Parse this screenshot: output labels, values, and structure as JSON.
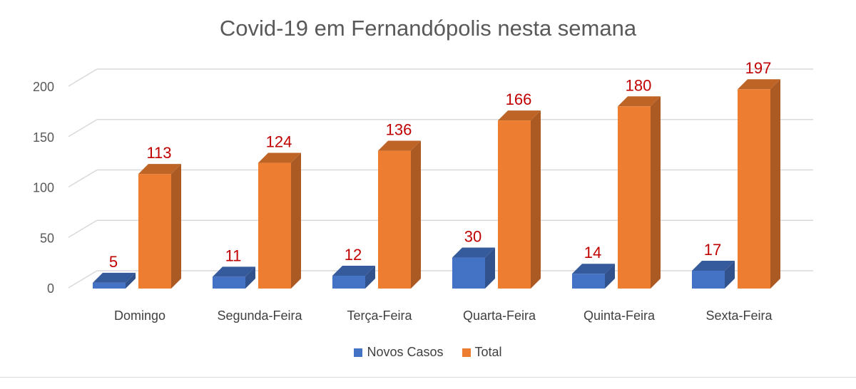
{
  "chart_data": {
    "type": "bar",
    "title": "Covid-19 em Fernandópolis nesta semana",
    "categories": [
      "Domingo",
      "Segunda-Feira",
      "Terça-Feira",
      "Quarta-Feira",
      "Quinta-Feira",
      "Sexta-Feira"
    ],
    "series": [
      {
        "name": "Novos Casos",
        "values": [
          5,
          11,
          12,
          30,
          14,
          17
        ],
        "color": "#4472c4"
      },
      {
        "name": "Total",
        "values": [
          113,
          124,
          136,
          166,
          180,
          197
        ],
        "color": "#ed7d31"
      }
    ],
    "ylim": [
      0,
      200
    ],
    "yticks": [
      0,
      50,
      100,
      150,
      200
    ],
    "grid": true,
    "legend_position": "bottom",
    "label_color": "#c00000",
    "three_d": true
  }
}
